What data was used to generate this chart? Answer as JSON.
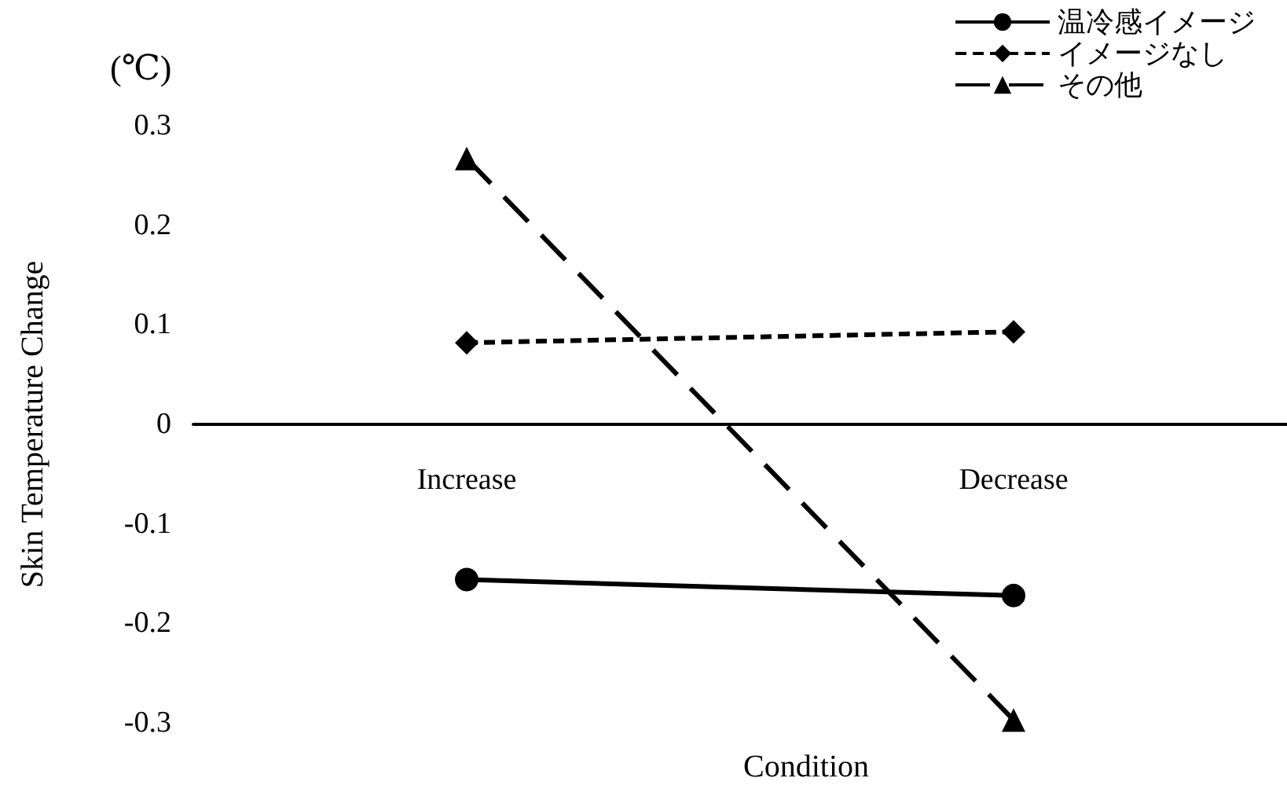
{
  "chart_data": {
    "type": "line",
    "xlabel": "Condition",
    "ylabel": "Skin Temperature Change",
    "annotations": [
      "(℃)"
    ],
    "categories": [
      "Increase",
      "Decrease"
    ],
    "series": [
      {
        "name": "温冷感イメージ",
        "color": "#000000",
        "values": [
          -0.156,
          -0.172
        ],
        "marker": "circle",
        "line_style": "solid"
      },
      {
        "name": "イメージなし",
        "color": "#000000",
        "values": [
          0.082,
          0.093
        ],
        "marker": "diamond",
        "line_style": "dotted"
      },
      {
        "name": "その他",
        "color": "#000000",
        "values": [
          0.267,
          -0.297
        ],
        "marker": "triangle",
        "line_style": "dashed"
      }
    ],
    "ylim": [
      -0.3,
      0.3
    ],
    "yticks": [
      -0.3,
      -0.2,
      -0.1,
      0,
      0.1,
      0.2,
      0.3
    ],
    "grid": false,
    "legend": "top right"
  }
}
